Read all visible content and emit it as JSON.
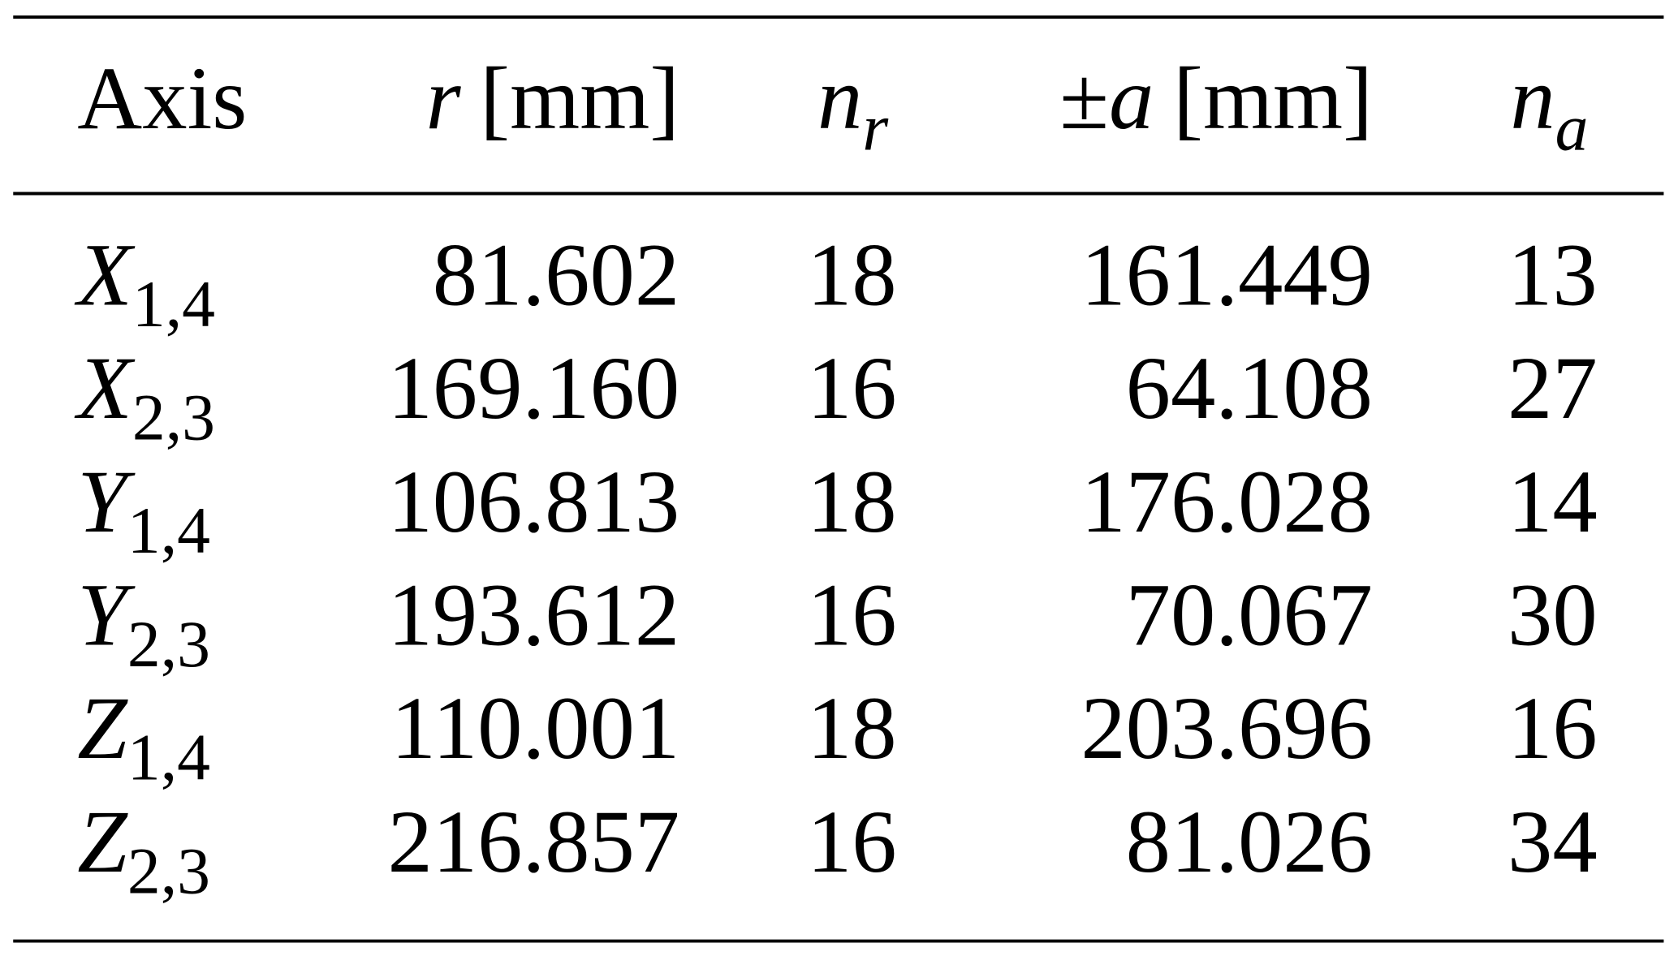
{
  "table": {
    "headers": [
      {
        "text": "Axis"
      },
      {
        "var": "r",
        "unit": "[mm]"
      },
      {
        "var": "n",
        "sub": "r"
      },
      {
        "prefix": "±",
        "var": "a",
        "unit": "[mm]"
      },
      {
        "var": "n",
        "sub": "a"
      }
    ],
    "rows": [
      [
        {
          "var": "X",
          "sub": "1,4"
        },
        "81.602",
        "18",
        "161.449",
        "13"
      ],
      [
        {
          "var": "X",
          "sub": "2,3"
        },
        "169.160",
        "16",
        "64.108",
        "27"
      ],
      [
        {
          "var": "Y",
          "sub": "1,4"
        },
        "106.813",
        "18",
        "176.028",
        "14"
      ],
      [
        {
          "var": "Y",
          "sub": "2,3"
        },
        "193.612",
        "16",
        "70.067",
        "30"
      ],
      [
        {
          "var": "Z",
          "sub": "1,4"
        },
        "110.001",
        "18",
        "203.696",
        "16"
      ],
      [
        {
          "var": "Z",
          "sub": "2,3"
        },
        "216.857",
        "16",
        "81.026",
        "34"
      ]
    ]
  }
}
